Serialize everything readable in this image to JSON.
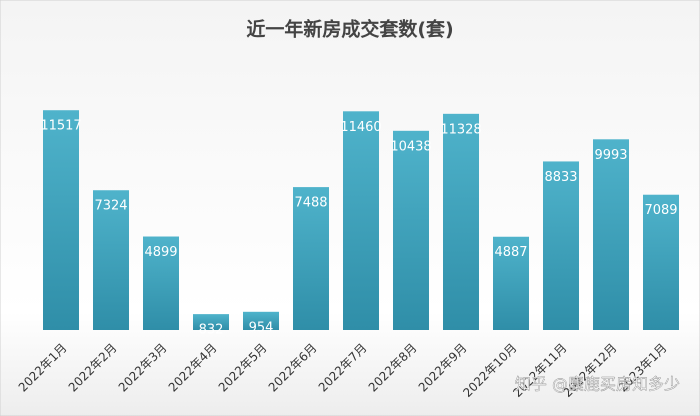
{
  "chart_data": {
    "type": "bar",
    "title": "近一年新房成交套数(套)",
    "categories": [
      "2022年1月",
      "2022年2月",
      "2022年3月",
      "2022年4月",
      "2022年5月",
      "2022年6月",
      "2022年7月",
      "2022年8月",
      "2022年9月",
      "2022年10月",
      "2022年11月",
      "2022年12月",
      "2023年1月"
    ],
    "values": [
      11517,
      7324,
      4899,
      832,
      954,
      7488,
      11460,
      10438,
      11328,
      4887,
      8833,
      9993,
      7089
    ],
    "color": "#3a9fb8",
    "ylim": [
      0,
      12000
    ],
    "watermark": "知乎 @麋鹿买房知多少"
  }
}
